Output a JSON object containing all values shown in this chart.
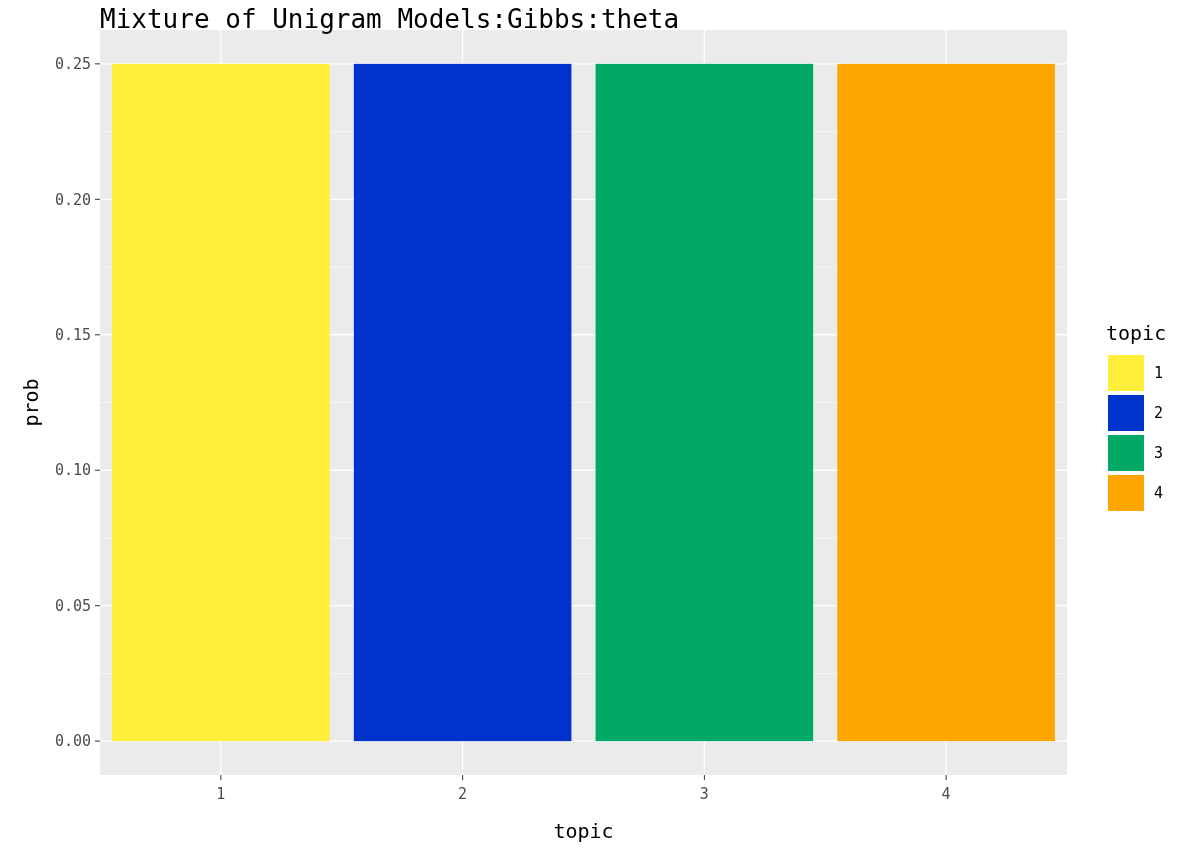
{
  "chart_data": {
    "type": "bar",
    "title": "Mixture of Unigram Models:Gibbs:theta",
    "categories": [
      "1",
      "2",
      "3",
      "4"
    ],
    "series": [
      {
        "name": "1",
        "color": "#ffee3a",
        "values": [
          0.25,
          null,
          null,
          null
        ]
      },
      {
        "name": "2",
        "color": "#0033cc",
        "values": [
          null,
          0.25,
          null,
          null
        ]
      },
      {
        "name": "3",
        "color": "#00aa66",
        "values": [
          null,
          null,
          0.25,
          null
        ]
      },
      {
        "name": "4",
        "color": "#ffa500",
        "values": [
          null,
          null,
          null,
          0.25
        ]
      }
    ],
    "xlabel": "topic",
    "ylabel": "prob",
    "legend_title": "topic",
    "ylim": [
      -0.0125,
      0.2625
    ],
    "yticks": [
      {
        "value": 0,
        "label": "0.00"
      },
      {
        "value": 0.05,
        "label": "0.05"
      },
      {
        "value": 0.1,
        "label": "0.10"
      },
      {
        "value": 0.15,
        "label": "0.15"
      },
      {
        "value": 0.2,
        "label": "0.20"
      },
      {
        "value": 0.25,
        "label": "0.25"
      }
    ],
    "grid": true,
    "legend": "right"
  }
}
